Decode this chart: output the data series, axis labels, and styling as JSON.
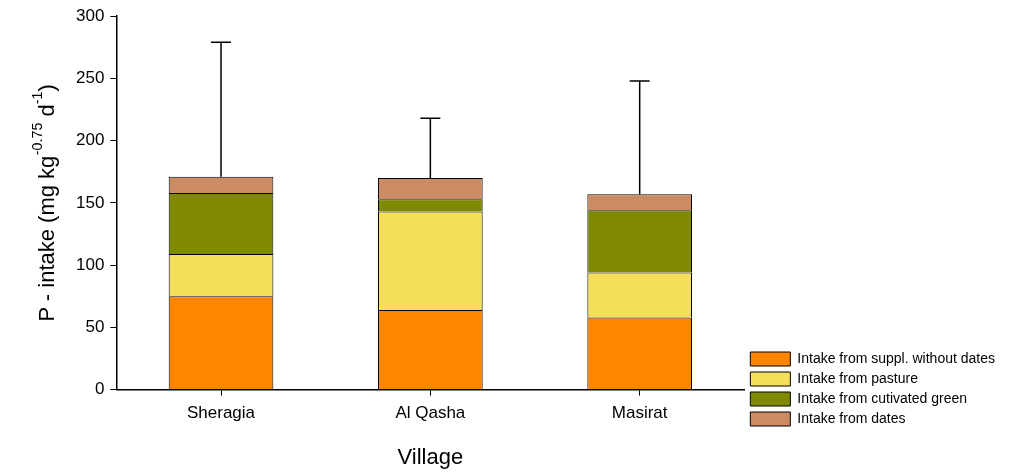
{
  "chart_data": {
    "type": "bar",
    "stacked": true,
    "xlabel": "Village",
    "ylabel": "P - intake (mg kg$^{-0.75}$ d$^{-1}$)",
    "categories": [
      "Sheragia",
      "Al Qasha",
      "Masirat"
    ],
    "series": [
      {
        "name": "Intake from suppl. without dates",
        "color": "#ff8400",
        "values": [
          75,
          64,
          58
        ]
      },
      {
        "name": "Intake from pasture",
        "color": "#f5df5a",
        "values": [
          34,
          79,
          36
        ]
      },
      {
        "name": "Intake from cutivated green",
        "color": "#7f8a00",
        "values": [
          49,
          10,
          50
        ]
      },
      {
        "name": "Intake from dates",
        "color": "#cc8b63",
        "values": [
          13,
          17,
          13
        ],
        "errors": [
          [
            171,
            279
          ],
          [
            170,
            218
          ],
          [
            157,
            248
          ]
        ]
      }
    ],
    "ylim": [
      0,
      300
    ],
    "yticks": [
      0,
      50,
      100,
      150,
      200,
      250,
      300
    ],
    "legend": "bottom right"
  }
}
